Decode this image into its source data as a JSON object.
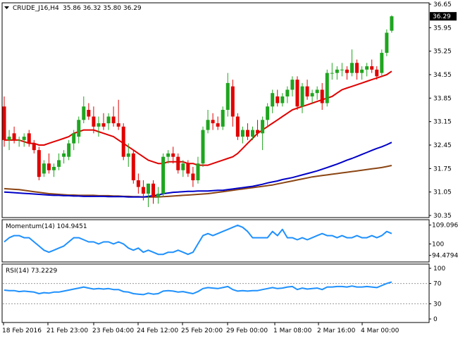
{
  "header": {
    "symbol": "CRUDE_J16,H4",
    "ohlc": "35.86 36.32 35.80 36.29"
  },
  "colors": {
    "bull": "#1fa51f",
    "bear": "#e00000",
    "ma_short": "#e00000",
    "ma_mid": "#0000c8",
    "ma_long": "#8b4513",
    "indicator_line": "#1e90ff",
    "price_tag_bg": "#000000"
  },
  "chart_data": [
    {
      "type": "candlestick",
      "name": "price",
      "current_price": "36.29",
      "ylim": [
        30.35,
        36.65
      ],
      "y_ticks": [
        "36.65",
        "35.95",
        "35.25",
        "34.55",
        "33.85",
        "33.15",
        "32.45",
        "31.75",
        "31.05",
        "30.35"
      ],
      "x_labels": [
        "18 Feb 2016",
        "21 Feb 23:00",
        "23 Feb 04:00",
        "24 Feb 12:00",
        "25 Feb 20:00",
        "29 Feb 00:00",
        "1 Mar 08:00",
        "2 Mar 16:00",
        "4 Mar 00:00"
      ],
      "candles": [
        [
          33.6,
          33.9,
          32.4,
          32.6
        ],
        [
          32.6,
          32.9,
          32.3,
          32.7
        ],
        [
          32.8,
          33.0,
          32.5,
          32.6
        ],
        [
          32.6,
          32.7,
          32.4,
          32.6
        ],
        [
          32.6,
          32.8,
          32.4,
          32.7
        ],
        [
          32.8,
          32.9,
          32.4,
          32.5
        ],
        [
          32.5,
          32.6,
          32.2,
          32.3
        ],
        [
          32.3,
          32.4,
          31.4,
          31.5
        ],
        [
          31.6,
          32.0,
          31.5,
          31.9
        ],
        [
          31.9,
          32.2,
          31.6,
          31.7
        ],
        [
          31.7,
          31.9,
          31.5,
          31.8
        ],
        [
          31.8,
          32.2,
          31.7,
          32.0
        ],
        [
          32.1,
          32.3,
          31.9,
          32.2
        ],
        [
          32.1,
          32.6,
          32.0,
          32.5
        ],
        [
          32.5,
          32.9,
          32.3,
          32.8
        ],
        [
          32.7,
          33.3,
          32.5,
          33.2
        ],
        [
          33.2,
          33.9,
          33.1,
          33.6
        ],
        [
          33.5,
          33.7,
          33.2,
          33.3
        ],
        [
          33.3,
          33.6,
          32.8,
          33.0
        ],
        [
          33.0,
          33.3,
          32.7,
          33.1
        ],
        [
          33.1,
          33.4,
          32.9,
          33.0
        ],
        [
          33.1,
          33.4,
          32.9,
          33.3
        ],
        [
          33.3,
          33.6,
          33.0,
          33.1
        ],
        [
          33.1,
          33.8,
          32.9,
          33.0
        ],
        [
          33.0,
          33.1,
          32.0,
          32.1
        ],
        [
          32.1,
          32.5,
          31.8,
          32.2
        ],
        [
          32.2,
          32.3,
          31.3,
          31.4
        ],
        [
          31.4,
          31.6,
          31.0,
          31.2
        ],
        [
          31.2,
          31.4,
          30.8,
          31.0
        ],
        [
          31.0,
          31.3,
          30.6,
          31.3
        ],
        [
          31.3,
          31.4,
          30.7,
          30.9
        ],
        [
          30.9,
          31.2,
          30.7,
          31.0
        ],
        [
          31.0,
          32.2,
          30.9,
          32.1
        ],
        [
          32.1,
          32.3,
          31.9,
          32.2
        ],
        [
          32.2,
          32.4,
          31.9,
          32.1
        ],
        [
          32.1,
          32.2,
          31.6,
          31.7
        ],
        [
          31.7,
          32.0,
          31.5,
          31.9
        ],
        [
          31.9,
          32.0,
          31.5,
          31.6
        ],
        [
          31.6,
          31.8,
          31.2,
          31.4
        ],
        [
          31.4,
          32.1,
          31.3,
          31.9
        ],
        [
          31.9,
          33.0,
          31.8,
          32.9
        ],
        [
          32.9,
          33.5,
          32.8,
          33.2
        ],
        [
          33.2,
          33.4,
          32.9,
          33.1
        ],
        [
          33.1,
          33.3,
          32.9,
          33.0
        ],
        [
          33.0,
          33.6,
          32.9,
          33.5
        ],
        [
          33.5,
          34.6,
          33.3,
          34.3
        ],
        [
          34.2,
          34.4,
          33.0,
          33.3
        ],
        [
          33.3,
          33.4,
          32.6,
          32.7
        ],
        [
          32.7,
          33.0,
          32.5,
          32.9
        ],
        [
          32.9,
          33.1,
          32.6,
          32.7
        ],
        [
          32.7,
          33.0,
          32.6,
          32.9
        ],
        [
          32.9,
          33.2,
          32.7,
          32.8
        ],
        [
          32.8,
          33.3,
          32.3,
          33.2
        ],
        [
          33.2,
          33.7,
          33.0,
          33.6
        ],
        [
          33.6,
          34.1,
          33.4,
          34.0
        ],
        [
          33.9,
          34.1,
          33.6,
          33.7
        ],
        [
          33.7,
          34.0,
          33.6,
          33.9
        ],
        [
          33.9,
          34.2,
          33.7,
          34.1
        ],
        [
          34.1,
          34.5,
          33.9,
          34.4
        ],
        [
          34.4,
          34.5,
          33.5,
          33.6
        ],
        [
          33.6,
          34.3,
          33.4,
          34.2
        ],
        [
          34.2,
          34.4,
          33.8,
          33.9
        ],
        [
          33.9,
          34.1,
          33.7,
          34.0
        ],
        [
          34.0,
          34.2,
          33.8,
          34.1
        ],
        [
          34.1,
          34.3,
          33.5,
          33.7
        ],
        [
          33.7,
          34.7,
          33.6,
          34.6
        ],
        [
          34.6,
          34.9,
          34.4,
          34.6
        ],
        [
          34.6,
          34.8,
          34.4,
          34.7
        ],
        [
          34.7,
          34.9,
          34.5,
          34.7
        ],
        [
          34.7,
          34.8,
          34.4,
          34.6
        ],
        [
          34.6,
          35.3,
          34.5,
          34.9
        ],
        [
          34.9,
          35.0,
          34.4,
          34.6
        ],
        [
          34.6,
          34.8,
          34.4,
          34.7
        ],
        [
          34.7,
          34.9,
          34.5,
          34.8
        ],
        [
          34.8,
          35.0,
          34.6,
          34.7
        ],
        [
          34.7,
          34.8,
          34.4,
          34.5
        ],
        [
          34.6,
          35.3,
          34.5,
          35.2
        ],
        [
          35.2,
          35.9,
          35.1,
          35.8
        ],
        [
          35.86,
          36.32,
          35.8,
          36.29
        ]
      ],
      "ma_short": [
        32.6,
        32.6,
        32.6,
        32.6,
        32.55,
        32.5,
        32.5,
        32.45,
        32.45,
        32.5,
        32.55,
        32.6,
        32.65,
        32.7,
        32.8,
        32.85,
        32.9,
        32.9,
        32.9,
        32.85,
        32.8,
        32.75,
        32.7,
        32.6,
        32.5,
        32.4,
        32.3,
        32.2,
        32.1,
        32.0,
        31.95,
        31.9,
        31.9,
        31.95,
        31.95,
        31.95,
        31.95,
        31.9,
        31.9,
        31.85,
        31.85,
        31.85,
        31.9,
        31.95,
        32.0,
        32.05,
        32.1,
        32.2,
        32.35,
        32.5,
        32.65,
        32.8,
        32.9,
        33.0,
        33.1,
        33.2,
        33.3,
        33.4,
        33.5,
        33.55,
        33.6,
        33.65,
        33.7,
        33.75,
        33.8,
        33.85,
        33.9,
        34.0,
        34.1,
        34.15,
        34.2,
        34.25,
        34.3,
        34.35,
        34.4,
        34.45,
        34.5,
        34.55,
        34.65
      ],
      "ma_mid": [
        31.05,
        31.04,
        31.03,
        31.02,
        31.01,
        31.0,
        30.99,
        30.98,
        30.97,
        30.96,
        30.95,
        30.95,
        30.94,
        30.94,
        30.93,
        30.93,
        30.92,
        30.92,
        30.92,
        30.92,
        30.92,
        30.91,
        30.91,
        30.91,
        30.91,
        30.9,
        30.9,
        30.9,
        30.9,
        30.92,
        30.94,
        30.96,
        31.0,
        31.02,
        31.04,
        31.05,
        31.06,
        31.07,
        31.07,
        31.08,
        31.08,
        31.08,
        31.09,
        31.1,
        31.1,
        31.12,
        31.14,
        31.16,
        31.18,
        31.2,
        31.22,
        31.25,
        31.28,
        31.32,
        31.35,
        31.38,
        31.42,
        31.45,
        31.48,
        31.52,
        31.56,
        31.6,
        31.64,
        31.68,
        31.73,
        31.78,
        31.83,
        31.88,
        31.94,
        32.0,
        32.05,
        32.11,
        32.17,
        32.23,
        32.29,
        32.35,
        32.4,
        32.46,
        32.53
      ],
      "ma_long": [
        31.15,
        31.14,
        31.13,
        31.12,
        31.1,
        31.08,
        31.06,
        31.04,
        31.02,
        31.0,
        30.99,
        30.98,
        30.97,
        30.96,
        30.96,
        30.95,
        30.95,
        30.95,
        30.95,
        30.94,
        30.94,
        30.94,
        30.93,
        30.93,
        30.92,
        30.92,
        30.91,
        30.91,
        30.9,
        30.9,
        30.9,
        30.9,
        30.91,
        30.92,
        30.93,
        30.94,
        30.95,
        30.96,
        30.97,
        30.98,
        30.99,
        31.0,
        31.02,
        31.04,
        31.06,
        31.08,
        31.1,
        31.12,
        31.14,
        31.16,
        31.18,
        31.2,
        31.22,
        31.24,
        31.26,
        31.29,
        31.32,
        31.35,
        31.38,
        31.41,
        31.44,
        31.47,
        31.5,
        31.52,
        31.54,
        31.56,
        31.58,
        31.6,
        31.62,
        31.64,
        31.66,
        31.68,
        31.7,
        31.72,
        31.74,
        31.76,
        31.78,
        31.81,
        31.84
      ]
    },
    {
      "type": "line",
      "name": "momentum",
      "label": "Momentum(14) 104.9451",
      "ylim": [
        92,
        111
      ],
      "y_ticks": [
        "109.0966",
        "100",
        "94.4794"
      ],
      "values": [
        101,
        103,
        104,
        104,
        103,
        103,
        101,
        99,
        97,
        96,
        97,
        98,
        99,
        101,
        103,
        103,
        102,
        101,
        101,
        100,
        101,
        101,
        100,
        101,
        100,
        98,
        97,
        98,
        96,
        97,
        96,
        95,
        95,
        96,
        96,
        97,
        96,
        95,
        96,
        100,
        104,
        105,
        104,
        105,
        106,
        107,
        108,
        109,
        108,
        106,
        103,
        103,
        103,
        103,
        106,
        104,
        107,
        103,
        103,
        102,
        103,
        102,
        103,
        104,
        105,
        104,
        104,
        103,
        104,
        103,
        103,
        104,
        103,
        103,
        104,
        103,
        104,
        106,
        105
      ]
    },
    {
      "type": "line",
      "name": "rsi",
      "label": "RSI(14) 73.2229",
      "ylim": [
        0,
        100
      ],
      "y_ticks": [
        "100",
        "70",
        "30",
        "0"
      ],
      "levels": [
        70,
        30
      ],
      "values": [
        57,
        56,
        56,
        54,
        55,
        54,
        53,
        50,
        52,
        51,
        53,
        53,
        55,
        57,
        59,
        61,
        63,
        61,
        59,
        60,
        59,
        60,
        58,
        58,
        54,
        53,
        50,
        49,
        48,
        51,
        49,
        50,
        55,
        56,
        55,
        53,
        54,
        52,
        50,
        54,
        60,
        62,
        61,
        60,
        62,
        64,
        58,
        55,
        56,
        55,
        56,
        56,
        58,
        60,
        62,
        60,
        61,
        63,
        64,
        58,
        61,
        59,
        60,
        61,
        58,
        63,
        63,
        64,
        64,
        63,
        65,
        63,
        63,
        64,
        63,
        62,
        66,
        70,
        73
      ]
    }
  ]
}
